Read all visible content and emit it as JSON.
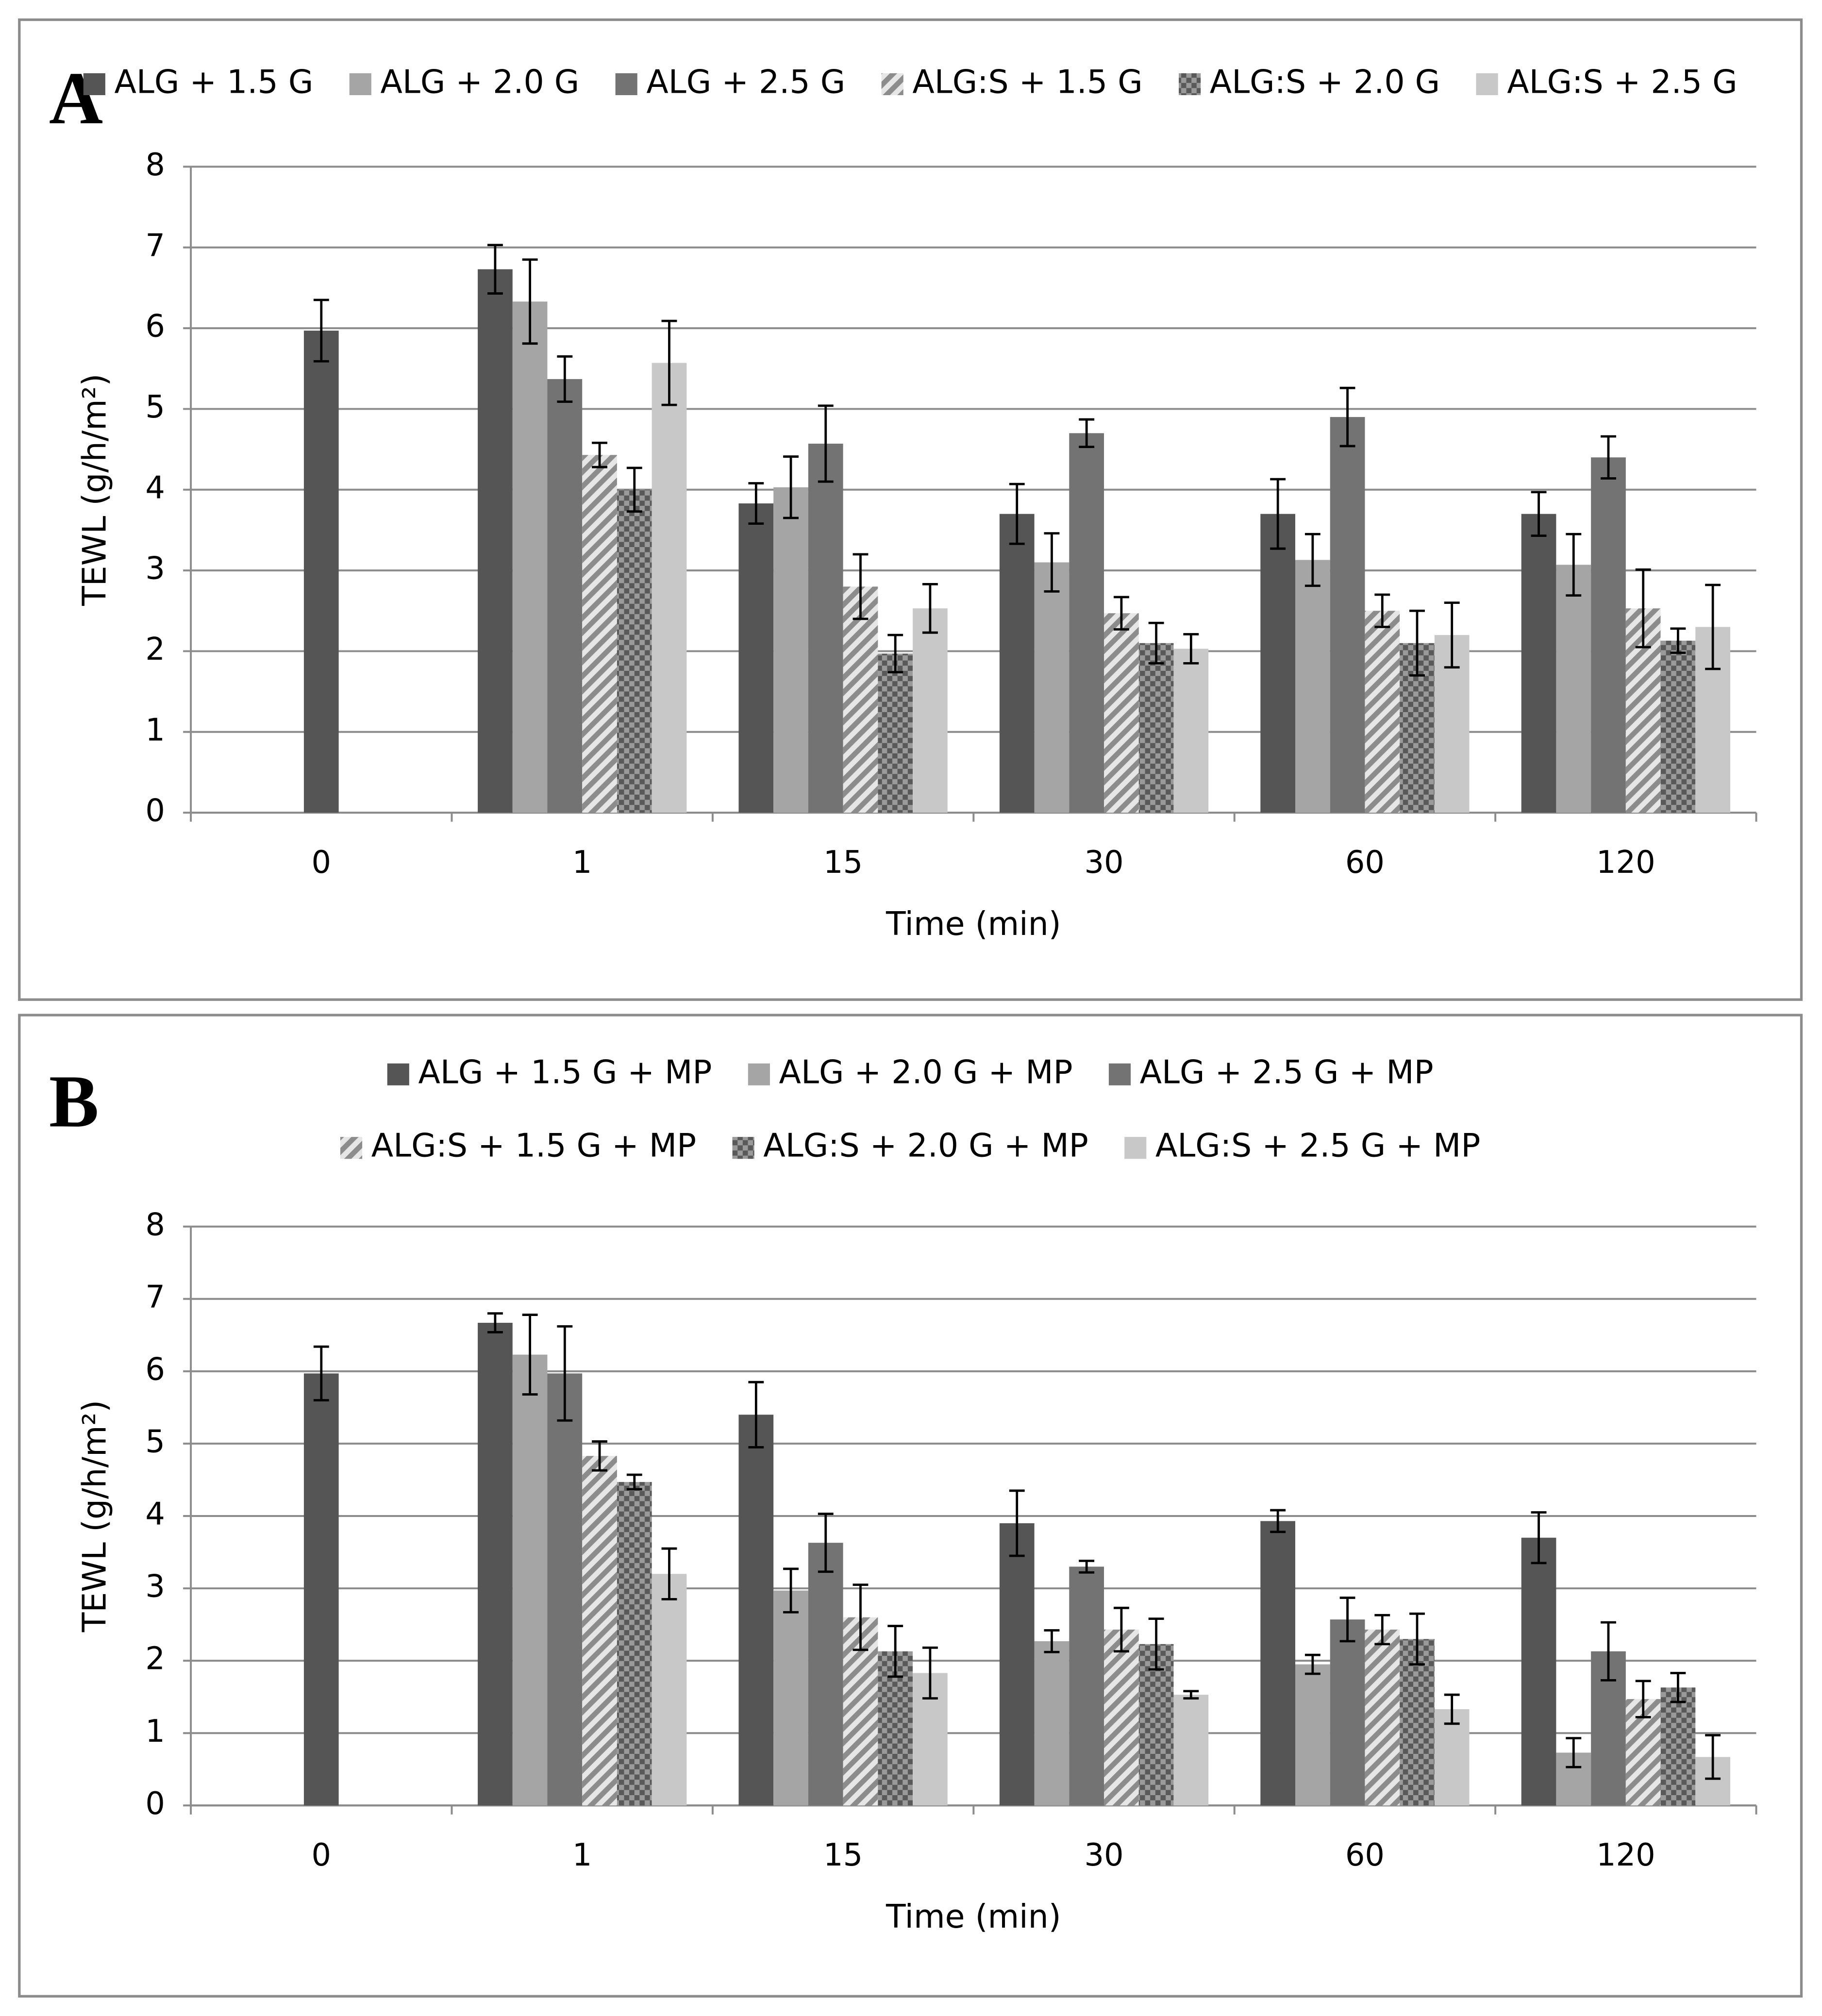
{
  "chart_data": [
    {
      "type": "bar",
      "panel_label": "A",
      "x_label": "Time (min)",
      "y_label": "TEWL (g/h/m²)",
      "categories": [
        "0",
        "1",
        "15",
        "30",
        "60",
        "120"
      ],
      "ylim": [
        0,
        8
      ],
      "yticks": [
        0,
        1,
        2,
        3,
        4,
        5,
        6,
        7,
        8
      ],
      "grid": true,
      "legend": "top",
      "series": [
        {
          "name": "ALG + 1.5 G",
          "color": "#555555",
          "values": [
            5.97,
            6.73,
            3.83,
            3.7,
            3.7,
            3.7
          ],
          "errors": [
            0.38,
            0.3,
            0.25,
            0.37,
            0.43,
            0.27
          ]
        },
        {
          "name": "ALG + 2.0 G",
          "color": "#a5a5a5",
          "values": [
            null,
            6.33,
            4.03,
            3.1,
            3.13,
            3.07
          ],
          "errors": [
            null,
            0.52,
            0.38,
            0.36,
            0.32,
            0.38
          ]
        },
        {
          "name": "ALG + 2.5 G",
          "color": "#737373",
          "values": [
            null,
            5.37,
            4.57,
            4.7,
            4.9,
            4.4
          ],
          "errors": [
            null,
            0.28,
            0.47,
            0.17,
            0.36,
            0.26
          ]
        },
        {
          "name": "ALG:S + 1.5 G",
          "color": "#8c8c8c",
          "pattern": "diagonal",
          "values": [
            null,
            4.43,
            2.8,
            2.47,
            2.5,
            2.53
          ],
          "errors": [
            null,
            0.15,
            0.4,
            0.2,
            0.2,
            0.48
          ]
        },
        {
          "name": "ALG:S + 2.0 G",
          "color": "#595959",
          "pattern": "checker",
          "values": [
            null,
            4.0,
            1.97,
            2.1,
            2.1,
            2.13
          ],
          "errors": [
            null,
            0.27,
            0.23,
            0.25,
            0.4,
            0.15
          ]
        },
        {
          "name": "ALG:S + 2.5 G",
          "color": "#c8c8c8",
          "values": [
            null,
            5.57,
            2.53,
            2.03,
            2.2,
            2.3
          ],
          "errors": [
            null,
            0.52,
            0.3,
            0.18,
            0.4,
            0.52
          ]
        }
      ]
    },
    {
      "type": "bar",
      "panel_label": "B",
      "x_label": "Time (min)",
      "y_label": "TEWL (g/h/m²)",
      "categories": [
        "0",
        "1",
        "15",
        "30",
        "60",
        "120"
      ],
      "ylim": [
        0,
        8
      ],
      "yticks": [
        0,
        1,
        2,
        3,
        4,
        5,
        6,
        7,
        8
      ],
      "grid": true,
      "legend": "top",
      "series": [
        {
          "name": "ALG + 1.5 G + MP",
          "color": "#555555",
          "values": [
            5.97,
            6.67,
            5.4,
            3.9,
            3.93,
            3.7
          ],
          "errors": [
            0.37,
            0.13,
            0.45,
            0.45,
            0.15,
            0.35
          ]
        },
        {
          "name": "ALG + 2.0 G + MP",
          "color": "#a5a5a5",
          "values": [
            null,
            6.23,
            2.97,
            2.27,
            1.95,
            0.73
          ],
          "errors": [
            null,
            0.55,
            0.3,
            0.15,
            0.13,
            0.2
          ]
        },
        {
          "name": "ALG + 2.5 G + MP",
          "color": "#737373",
          "values": [
            null,
            5.97,
            3.63,
            3.3,
            2.57,
            2.13
          ],
          "errors": [
            null,
            0.65,
            0.4,
            0.08,
            0.3,
            0.4
          ]
        },
        {
          "name": "ALG:S + 1.5 G + MP",
          "color": "#8c8c8c",
          "pattern": "diagonal",
          "values": [
            null,
            4.83,
            2.6,
            2.43,
            2.43,
            1.47
          ],
          "errors": [
            null,
            0.2,
            0.45,
            0.3,
            0.2,
            0.25
          ]
        },
        {
          "name": "ALG:S + 2.0 G + MP",
          "color": "#595959",
          "pattern": "checker",
          "values": [
            null,
            4.47,
            2.13,
            2.23,
            2.3,
            1.63
          ],
          "errors": [
            null,
            0.1,
            0.35,
            0.35,
            0.35,
            0.2
          ]
        },
        {
          "name": "ALG:S + 2.5 G + MP",
          "color": "#c8c8c8",
          "values": [
            null,
            3.2,
            1.83,
            1.53,
            1.33,
            0.67
          ],
          "errors": [
            null,
            0.35,
            0.35,
            0.05,
            0.2,
            0.3
          ]
        }
      ]
    }
  ]
}
